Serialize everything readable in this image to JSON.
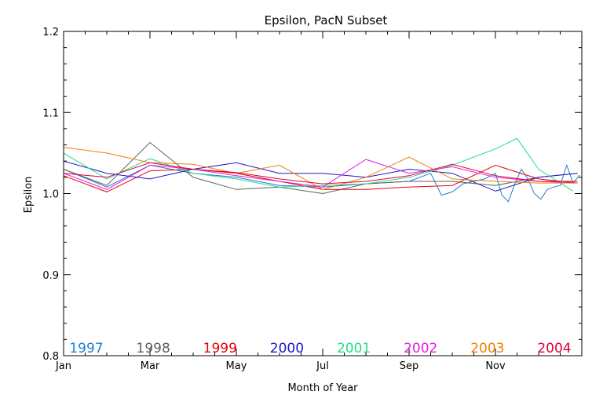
{
  "chart_data": {
    "type": "line",
    "title": "Epsilon, PacN Subset",
    "xlabel": "Month of Year",
    "ylabel": "Epsilon",
    "xlim": [
      1,
      13
    ],
    "ylim": [
      0.8,
      1.2
    ],
    "x_ticks": [
      {
        "value": 1,
        "label": "Jan"
      },
      {
        "value": 3,
        "label": "Mar"
      },
      {
        "value": 5,
        "label": "May"
      },
      {
        "value": 7,
        "label": "Jul"
      },
      {
        "value": 9,
        "label": "Sep"
      },
      {
        "value": 11,
        "label": "Nov"
      }
    ],
    "y_ticks": [
      {
        "value": 0.8,
        "label": "0.8"
      },
      {
        "value": 0.9,
        "label": "0.9"
      },
      {
        "value": 1.0,
        "label": "1.0"
      },
      {
        "value": 1.1,
        "label": "1.1"
      },
      {
        "value": 1.2,
        "label": "1.2"
      }
    ],
    "grid": false,
    "legend_position": "bottom",
    "series": [
      {
        "name": "1997",
        "color": "#1f7fd0",
        "x": [
          1,
          2,
          3,
          4,
          5,
          6,
          7,
          8,
          9,
          9.5,
          9.75,
          10,
          10.25,
          10.5,
          10.75,
          11,
          11.15,
          11.3,
          11.45,
          11.6,
          11.75,
          11.9,
          12.05,
          12.2,
          12.35,
          12.5,
          12.65,
          12.8,
          12.95
        ],
        "y": [
          1.03,
          1.008,
          1.035,
          1.025,
          1.02,
          1.01,
          1.008,
          1.012,
          1.015,
          1.025,
          0.998,
          1.002,
          1.012,
          1.015,
          1.018,
          1.025,
          0.998,
          0.99,
          1.012,
          1.03,
          1.018,
          1.0,
          0.993,
          1.005,
          1.008,
          1.01,
          1.035,
          1.013,
          1.023
        ]
      },
      {
        "name": "1998",
        "color": "#606060",
        "x": [
          1,
          2,
          3,
          4,
          5,
          6,
          7,
          8,
          9,
          10,
          11,
          12,
          12.9
        ],
        "y": [
          1.03,
          1.01,
          1.063,
          1.02,
          1.005,
          1.008,
          1.0,
          1.012,
          1.015,
          1.015,
          1.01,
          1.02,
          1.025
        ]
      },
      {
        "name": "1999",
        "color": "#e8000b",
        "x": [
          1,
          2,
          3,
          4,
          5,
          6,
          7,
          8,
          9,
          10,
          11,
          12,
          12.9
        ],
        "y": [
          1.022,
          1.002,
          1.028,
          1.03,
          1.025,
          1.015,
          1.005,
          1.005,
          1.008,
          1.01,
          1.035,
          1.018,
          1.013
        ]
      },
      {
        "name": "2000",
        "color": "#1a18c8",
        "x": [
          1,
          2,
          3,
          4,
          5,
          6,
          7,
          8,
          9,
          10,
          11,
          12,
          12.9
        ],
        "y": [
          1.04,
          1.025,
          1.018,
          1.03,
          1.038,
          1.025,
          1.025,
          1.02,
          1.03,
          1.025,
          1.003,
          1.02,
          1.025
        ]
      },
      {
        "name": "2001",
        "color": "#22dd88",
        "x": [
          1,
          2,
          3,
          4,
          5,
          6,
          7,
          8,
          9,
          10,
          11,
          11.5,
          12,
          12.8
        ],
        "y": [
          1.05,
          1.018,
          1.043,
          1.025,
          1.018,
          1.008,
          1.01,
          1.012,
          1.02,
          1.035,
          1.055,
          1.068,
          1.03,
          1.003
        ]
      },
      {
        "name": "2002",
        "color": "#e020e0",
        "x": [
          1,
          2,
          3,
          4,
          5,
          6,
          7,
          8,
          9,
          10,
          11,
          12,
          12.9
        ],
        "y": [
          1.025,
          1.005,
          1.035,
          1.03,
          1.022,
          1.015,
          1.008,
          1.042,
          1.025,
          1.033,
          1.02,
          1.015,
          1.013
        ]
      },
      {
        "name": "2003",
        "color": "#f08000",
        "x": [
          1,
          2,
          3,
          4,
          5,
          6,
          7,
          8,
          9,
          10,
          11,
          12,
          12.9
        ],
        "y": [
          1.057,
          1.05,
          1.038,
          1.036,
          1.025,
          1.035,
          1.005,
          1.02,
          1.045,
          1.018,
          1.015,
          1.013,
          1.013
        ]
      },
      {
        "name": "2004",
        "color": "#e0003a",
        "x": [
          1,
          2,
          3,
          4,
          5,
          6,
          7,
          8,
          9,
          10,
          11,
          12,
          12.9
        ],
        "y": [
          1.025,
          1.02,
          1.038,
          1.03,
          1.026,
          1.018,
          1.012,
          1.015,
          1.022,
          1.036,
          1.022,
          1.015,
          1.015
        ]
      }
    ]
  }
}
